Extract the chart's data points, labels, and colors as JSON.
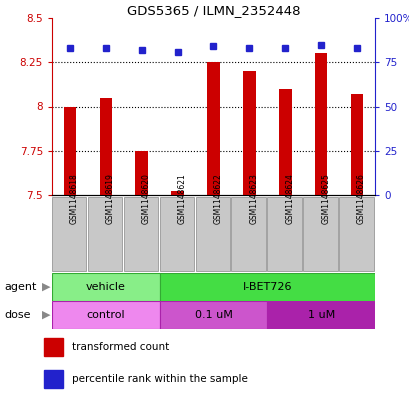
{
  "title": "GDS5365 / ILMN_2352448",
  "samples": [
    "GSM1148618",
    "GSM1148619",
    "GSM1148620",
    "GSM1148621",
    "GSM1148622",
    "GSM1148623",
    "GSM1148624",
    "GSM1148625",
    "GSM1148626"
  ],
  "bar_values": [
    8.0,
    8.05,
    7.75,
    7.52,
    8.25,
    8.2,
    8.1,
    8.3,
    8.07
  ],
  "percentile_values": [
    83,
    83,
    82,
    81,
    84,
    83,
    83,
    85,
    83
  ],
  "bar_color": "#cc0000",
  "dot_color": "#2222cc",
  "bar_bottom": 7.5,
  "ylim_left": [
    7.5,
    8.5
  ],
  "ylim_right": [
    0,
    100
  ],
  "yticks_left": [
    7.5,
    7.75,
    8.0,
    8.25,
    8.5
  ],
  "yticks_right": [
    0,
    25,
    50,
    75,
    100
  ],
  "ytick_labels_left": [
    "7.5",
    "7.75",
    "8",
    "8.25",
    "8.5"
  ],
  "ytick_labels_right": [
    "0",
    "25",
    "50",
    "75",
    "100%"
  ],
  "dotted_lines": [
    7.75,
    8.0,
    8.25
  ],
  "agent_labels": [
    "vehicle",
    "I-BET726"
  ],
  "agent_colors": [
    "#88ee88",
    "#44dd44"
  ],
  "dose_labels": [
    "control",
    "0.1 uM",
    "1 uM"
  ],
  "dose_colors": [
    "#ee88ee",
    "#cc55cc",
    "#aa22aa"
  ],
  "legend_items": [
    "transformed count",
    "percentile rank within the sample"
  ],
  "legend_colors": [
    "#cc0000",
    "#2222cc"
  ],
  "bg_color": "#ffffff",
  "tick_label_color_left": "#cc0000",
  "tick_label_color_right": "#2222cc",
  "gray_col": "#c8c8c8",
  "gray_border": "#888888"
}
